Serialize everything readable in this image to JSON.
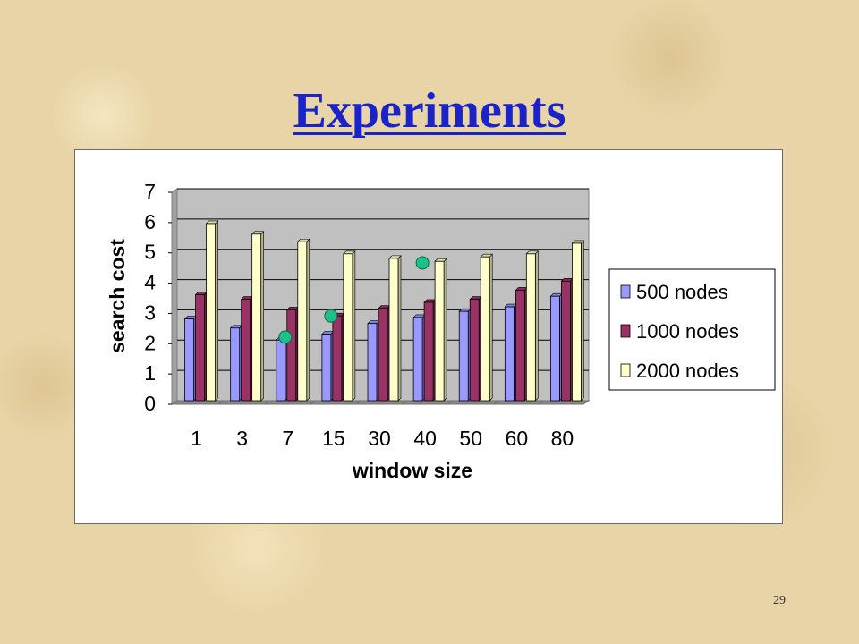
{
  "slide": {
    "title": "Experiments",
    "page_number": "29"
  },
  "colors": {
    "title": "#1a22c8",
    "plot_area": "#c0c0c0",
    "series_500": "#9999ff",
    "series_1000": "#993366",
    "series_2000": "#ffffcc",
    "marker": "#1fbf8a"
  },
  "chart_data": {
    "type": "bar",
    "xlabel": "window size",
    "ylabel": "search cost",
    "categories": [
      "1",
      "3",
      "7",
      "15",
      "30",
      "40",
      "50",
      "60",
      "80"
    ],
    "ylim": [
      0,
      7
    ],
    "yticks": [
      "0",
      "1",
      "2",
      "3",
      "4",
      "5",
      "6",
      "7"
    ],
    "grid": true,
    "legend_position": "right",
    "series": [
      {
        "name": "500 nodes",
        "values": [
          2.7,
          2.4,
          2.0,
          2.2,
          2.55,
          2.75,
          2.95,
          3.1,
          3.45
        ]
      },
      {
        "name": "1000 nodes",
        "values": [
          3.5,
          3.35,
          3.0,
          2.8,
          3.05,
          3.25,
          3.35,
          3.65,
          3.95
        ]
      },
      {
        "name": "2000 nodes",
        "values": [
          5.85,
          5.5,
          5.25,
          4.85,
          4.7,
          4.6,
          4.75,
          4.85,
          5.2
        ]
      }
    ],
    "annotations": [
      {
        "category": "7",
        "value": 2.1
      },
      {
        "category": "15",
        "value": 2.8
      },
      {
        "category": "40",
        "value": 4.55
      }
    ]
  }
}
